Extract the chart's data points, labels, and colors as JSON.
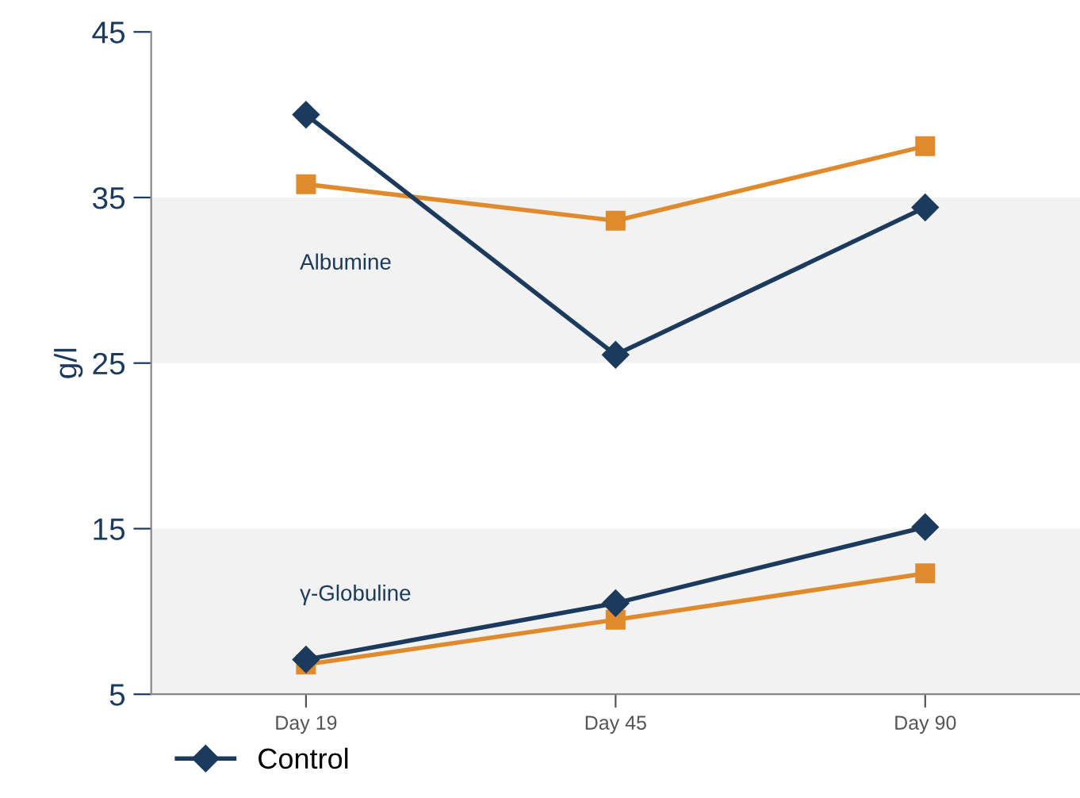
{
  "chart_data": {
    "type": "line",
    "ylabel": "g/l",
    "categories": [
      "Day 19",
      "Day 45",
      "Day 90"
    ],
    "series": [
      {
        "name": "Control",
        "color": "#1b3a5c",
        "marker": "diamond",
        "values": [
          40.0,
          25.5,
          34.4
        ]
      },
      {
        "color": "#e08a2e",
        "marker": "square",
        "values": [
          35.8,
          33.6,
          38.1
        ]
      },
      {
        "color": "#1b3a5c",
        "marker": "diamond",
        "values": [
          7.1,
          10.5,
          15.1
        ]
      },
      {
        "color": "#e08a2e",
        "marker": "square",
        "values": [
          6.8,
          9.5,
          12.3
        ]
      }
    ],
    "bands": [
      {
        "axis": "y",
        "from": 25,
        "to": 35,
        "label": "Albumine",
        "color": "#f1f2f1"
      },
      {
        "axis": "y",
        "from": 5,
        "to": 15,
        "label": "γ-Globuline",
        "color": "#f1f2f1"
      }
    ],
    "ylim": [
      5,
      45
    ],
    "yticks": [
      5,
      15,
      25,
      35,
      45
    ],
    "legend": "bottom",
    "grid": false
  }
}
